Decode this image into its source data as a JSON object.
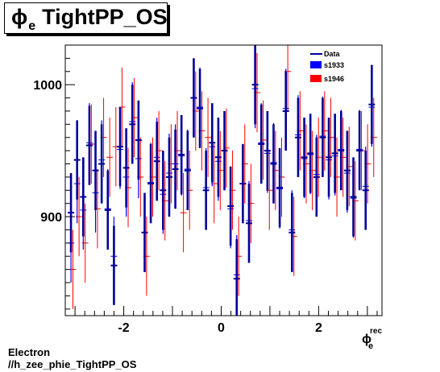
{
  "title": {
    "symbol": "ϕ",
    "subscript": "e",
    "text": "TightPP_OS"
  },
  "footer": {
    "line1": "Electron",
    "line2": "//h_zee_phie_TightPP_OS"
  },
  "colors": {
    "data": "#000099",
    "s1933": "#0000ff",
    "s1946": "#ff0000",
    "axis": "#000000"
  },
  "chart_data": {
    "type": "scatter",
    "xlim": [
      -3.2,
      3.3
    ],
    "ylim": [
      825,
      1030
    ],
    "x_ticks": [
      -2,
      0,
      2
    ],
    "x_tick_labels": [
      "-2",
      "0",
      "2"
    ],
    "y_ticks": [
      900,
      1000
    ],
    "y_tick_labels": [
      "900",
      "1000"
    ],
    "xlabel": {
      "symbol": "ϕ",
      "sub": "e",
      "sup": "rec"
    },
    "legend": {
      "position": "top-right",
      "entries": [
        "Data",
        "s1933",
        "s1946"
      ]
    },
    "bin_centers": [
      -3.083,
      -2.957,
      -2.831,
      -2.705,
      -2.579,
      -2.453,
      -2.327,
      -2.201,
      -2.075,
      -1.949,
      -1.823,
      -1.697,
      -1.571,
      -1.445,
      -1.319,
      -1.193,
      -1.067,
      -0.941,
      -0.815,
      -0.689,
      -0.563,
      -0.437,
      -0.311,
      -0.185,
      -0.059,
      0.067,
      0.193,
      0.319,
      0.445,
      0.571,
      0.697,
      0.823,
      0.949,
      1.075,
      1.201,
      1.327,
      1.453,
      1.579,
      1.705,
      1.831,
      1.957,
      2.083,
      2.209,
      2.335,
      2.461,
      2.587,
      2.713,
      2.839,
      2.965,
      3.091
    ],
    "series": [
      {
        "name": "Data",
        "values": [
          903,
          943,
          915,
          954,
          935,
          940,
          905,
          863,
          953,
          937,
          970,
          958,
          888,
          925,
          942,
          920,
          930,
          936,
          947,
          935,
          990,
          982,
          920,
          956,
          945,
          950,
          908,
          853,
          925,
          895,
          1000,
          955,
          950,
          940,
          922,
          980,
          888,
          960,
          945,
          948,
          930,
          960,
          945,
          948,
          950,
          935,
          915,
          950,
          920,
          985
        ]
      },
      {
        "name": "s1933",
        "values": [
          880,
          925,
          905,
          956,
          918,
          943,
          906,
          870,
          951,
          930,
          972,
          944,
          888,
          926,
          945,
          917,
          933,
          940,
          946,
          936,
          990,
          983,
          922,
          953,
          942,
          950,
          906,
          856,
          925,
          897,
          997,
          956,
          948,
          941,
          921,
          982,
          890,
          962,
          944,
          947,
          932,
          961,
          943,
          946,
          951,
          933,
          914,
          951,
          923,
          983
        ]
      },
      {
        "name": "s1946",
        "values": [
          860,
          900,
          880,
          955,
          906,
          960,
          945,
          953,
          983,
          922,
          975,
          930,
          870,
          930,
          950,
          912,
          940,
          950,
          903,
          920,
          980,
          965,
          960,
          925,
          935,
          952,
          920,
          870,
          940,
          910,
          994,
          958,
          920,
          935,
          930,
          1010,
          885,
          965,
          940,
          935,
          945,
          965,
          960,
          930,
          945,
          938,
          912,
          950,
          940,
          960
        ]
      }
    ],
    "errors": [
      30,
      30,
      30,
      30,
      30,
      30,
      30,
      30,
      30,
      30,
      30,
      30,
      30,
      30,
      30,
      30,
      30,
      30,
      30,
      30,
      30,
      30,
      30,
      30,
      30,
      30,
      30,
      30,
      30,
      30,
      30,
      30,
      30,
      30,
      30,
      30,
      30,
      30,
      30,
      30,
      30,
      30,
      30,
      30,
      30,
      30,
      30,
      30,
      30,
      30
    ]
  }
}
